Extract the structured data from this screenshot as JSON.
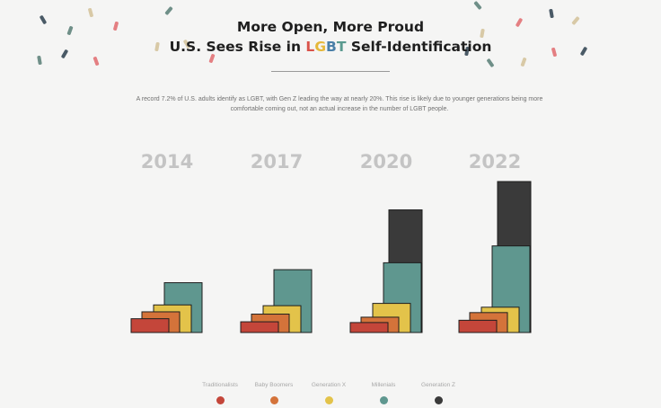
{
  "header": {
    "title_line1": "More Open, More Proud",
    "title_line2_prefix": "U.S. Sees Rise in ",
    "lgbt_letters": [
      "L",
      "G",
      "B",
      "T"
    ],
    "lgbt_colors": [
      "#d9534a",
      "#e5b83a",
      "#4a7fa8",
      "#5a9a8f"
    ],
    "title_line2_suffix": " Self-Identification",
    "subtitle": "A record 7.2% of U.S. adults identify as LGBT, with Gen Z leading the way at nearly 20%. This rise is likely due to younger generations being more comfortable coming out, not an actual increase in the number of LGBT people."
  },
  "colors": {
    "background": "#f5f5f4",
    "year_label": "#c4c4c4"
  },
  "chart_data": {
    "type": "bar",
    "categories": [
      "2014",
      "2017",
      "2020",
      "2022"
    ],
    "series": [
      {
        "name": "Traditionalists",
        "color": "#c4463a",
        "values": [
          1.8,
          1.4,
          1.3,
          1.6
        ]
      },
      {
        "name": "Baby Boomers",
        "color": "#d4733a",
        "values": [
          2.7,
          2.4,
          2.0,
          2.6
        ]
      },
      {
        "name": "Generation X",
        "color": "#e3c34a",
        "values": [
          3.6,
          3.5,
          3.8,
          3.3
        ]
      },
      {
        "name": "Millenials",
        "color": "#5f978f",
        "values": [
          6.5,
          8.2,
          9.1,
          11.3
        ]
      },
      {
        "name": "Generation Z",
        "color": "#3a3a3a",
        "values": [
          null,
          null,
          16.0,
          19.7
        ]
      }
    ]
  }
}
